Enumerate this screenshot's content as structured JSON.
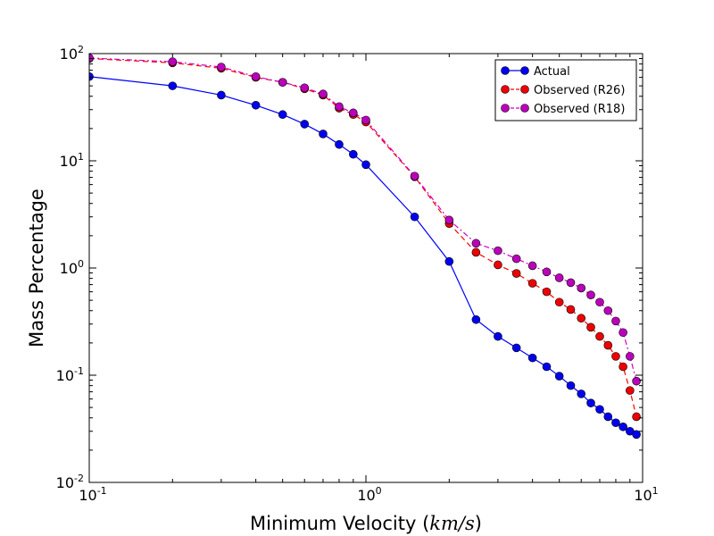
{
  "chart_data": {
    "type": "line",
    "xscale": "log",
    "yscale": "log",
    "xlim": [
      0.1,
      10
    ],
    "ylim": [
      0.01,
      100
    ],
    "xlabel": "Minimum Velocity",
    "xlabel_units": "km/s",
    "ylabel": "Mass Percentage",
    "x_ticks": [
      {
        "value": 0.1,
        "base": "10",
        "exp": "-1"
      },
      {
        "value": 1,
        "base": "10",
        "exp": "0"
      },
      {
        "value": 10,
        "base": "10",
        "exp": "1"
      }
    ],
    "y_ticks": [
      {
        "value": 0.01,
        "base": "10",
        "exp": "-2"
      },
      {
        "value": 0.1,
        "base": "10",
        "exp": "-1"
      },
      {
        "value": 1,
        "base": "10",
        "exp": "0"
      },
      {
        "value": 10,
        "base": "10",
        "exp": "1"
      },
      {
        "value": 100,
        "base": "10",
        "exp": "2"
      }
    ],
    "legend_position": "top-right",
    "series": [
      {
        "name": "Actual",
        "color": "#0000ff",
        "marker_color": "#0000ee",
        "line_style": "solid",
        "x": [
          0.1,
          0.2,
          0.3,
          0.4,
          0.5,
          0.6,
          0.7,
          0.8,
          0.9,
          1.0,
          1.5,
          2.0,
          2.5,
          3.0,
          3.5,
          4.0,
          4.5,
          5.0,
          5.5,
          6.0,
          6.5,
          7.0,
          7.5,
          8.0,
          8.5,
          9.0,
          9.5
        ],
        "y": [
          61,
          50,
          41,
          33,
          27,
          22,
          17.8,
          14.2,
          11.5,
          9.2,
          3.0,
          1.15,
          0.33,
          0.23,
          0.18,
          0.145,
          0.12,
          0.098,
          0.08,
          0.067,
          0.055,
          0.048,
          0.041,
          0.036,
          0.033,
          0.03,
          0.028
        ]
      },
      {
        "name": "Observed (R26)",
        "color": "#ff0000",
        "marker_color": "#ee0000",
        "line_style": "dashed",
        "x": [
          0.1,
          0.2,
          0.3,
          0.4,
          0.5,
          0.6,
          0.7,
          0.8,
          0.9,
          1.0,
          1.5,
          2.0,
          2.5,
          3.0,
          3.5,
          4.0,
          4.5,
          5.0,
          5.5,
          6.0,
          6.5,
          7.0,
          7.5,
          8.0,
          8.5,
          9.0,
          9.5
        ],
        "y": [
          90,
          82,
          73,
          60,
          54,
          47,
          41,
          31,
          27,
          23,
          7.1,
          2.6,
          1.4,
          1.07,
          0.89,
          0.72,
          0.6,
          0.48,
          0.41,
          0.34,
          0.28,
          0.23,
          0.19,
          0.15,
          0.12,
          0.072,
          0.041
        ]
      },
      {
        "name": "Observed (R18)",
        "color": "#cc00cc",
        "marker_color": "#bb00bb",
        "line_style": "dashdot",
        "x": [
          0.1,
          0.2,
          0.3,
          0.4,
          0.5,
          0.6,
          0.7,
          0.8,
          0.9,
          1.0,
          1.5,
          2.0,
          2.5,
          3.0,
          3.5,
          4.0,
          4.5,
          5.0,
          5.5,
          6.0,
          6.5,
          7.0,
          7.5,
          8.0,
          8.5,
          9.0,
          9.5
        ],
        "y": [
          91,
          84,
          75,
          61,
          54,
          48,
          42,
          32,
          28,
          24,
          7.2,
          2.8,
          1.7,
          1.45,
          1.22,
          1.05,
          0.92,
          0.81,
          0.73,
          0.65,
          0.56,
          0.48,
          0.4,
          0.32,
          0.25,
          0.15,
          0.088
        ]
      }
    ]
  }
}
